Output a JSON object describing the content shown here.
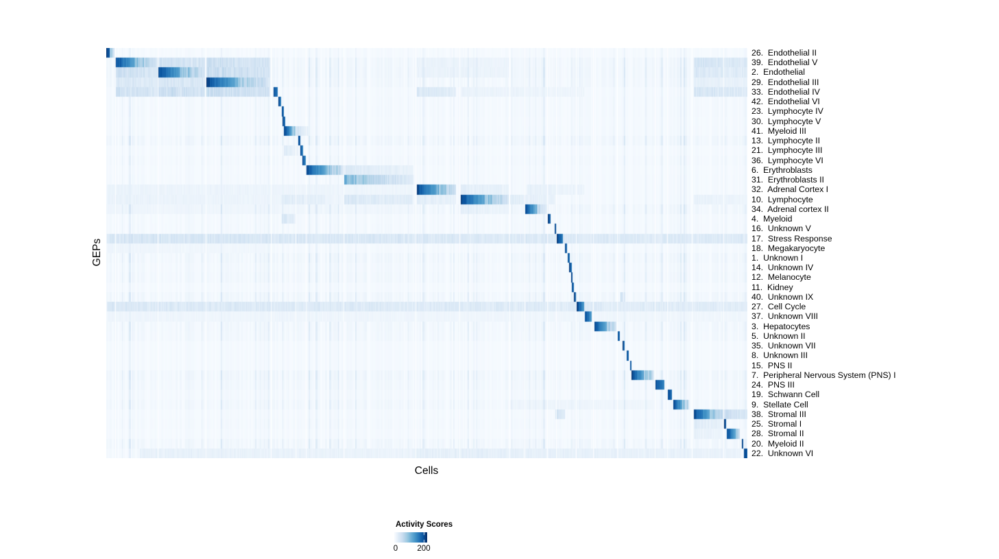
{
  "accent_color": "#08306b",
  "background_color": "#ffffff",
  "chart_data": {
    "type": "heatmap",
    "x_axis_label": "Cells",
    "y_axis_label": "GEPs",
    "legend": {
      "title": "Activity Scores",
      "tick_labels": [
        "0",
        "200"
      ],
      "tick_values": [
        0,
        200
      ],
      "value_max": 223,
      "tick_fraction": 0.896
    },
    "colormap": [
      [
        0.0,
        "#f7fbff"
      ],
      [
        0.13,
        "#deebf7"
      ],
      [
        0.26,
        "#c6dbef"
      ],
      [
        0.39,
        "#9ecae1"
      ],
      [
        0.52,
        "#6baed6"
      ],
      [
        0.65,
        "#4292c6"
      ],
      [
        0.78,
        "#2171b5"
      ],
      [
        0.9,
        "#08519c"
      ],
      [
        1.0,
        "#08306b"
      ]
    ],
    "cluster_gaps": [
      0.0134,
      0.0802,
      0.1551,
      0.2567,
      0.2957,
      0.3117,
      0.3701,
      0.4827,
      0.5513,
      0.6294,
      0.6529,
      0.6877,
      0.7011,
      0.7326,
      0.7594,
      0.7973,
      0.8556,
      0.8749,
      0.9139,
      0.9631
    ],
    "rows": [
      {
        "label": "26.  Endothelial II",
        "blocks": [
          [
            0.0,
            0.0053,
            1,
            0.9
          ],
          [
            0.0053,
            0.0128,
            0.5,
            0.28
          ]
        ]
      },
      {
        "label": "39.  Endothelial V",
        "blocks": [
          [
            0.0139,
            0.0797,
            1,
            0.22
          ],
          [
            0.0813,
            0.1545,
            0.28,
            0.22
          ],
          [
            0.1561,
            0.2561,
            0.3,
            0.23
          ],
          [
            0.4843,
            0.6278,
            0.09,
            0.07
          ],
          [
            0.9166,
            1,
            0.23,
            0.18
          ]
        ]
      },
      {
        "label": "2.  Endothelial",
        "blocks": [
          [
            0.0813,
            0.1545,
            1,
            0.24
          ],
          [
            0.0139,
            0.0797,
            0.3,
            0.23
          ],
          [
            0.1561,
            0.2561,
            0.33,
            0.25
          ],
          [
            0.4843,
            0.6278,
            0.09,
            0.07
          ],
          [
            0.9166,
            1,
            0.19,
            0.15
          ]
        ]
      },
      {
        "label": "29.  Endothelial III",
        "blocks": [
          [
            0.1561,
            0.2561,
            1,
            0.2
          ],
          [
            0.0139,
            0.0797,
            0.21,
            0.17
          ],
          [
            0.0813,
            0.1545,
            0.24,
            0.19
          ],
          [
            0.9166,
            1,
            0.12,
            0.09
          ]
        ]
      },
      {
        "label": "33.  Endothelial IV",
        "blocks": [
          [
            0.2609,
            0.2674,
            1,
            0.8
          ],
          [
            0.0139,
            0.0797,
            0.27,
            0.22
          ],
          [
            0.0813,
            0.1545,
            0.3,
            0.25
          ],
          [
            0.1561,
            0.2561,
            0.33,
            0.25
          ],
          [
            0.4843,
            0.5455,
            0.19,
            0.14
          ],
          [
            0.5529,
            0.745,
            0.09,
            0.06
          ],
          [
            0.9166,
            1,
            0.24,
            0.17
          ]
        ]
      },
      {
        "label": "42.  Endothelial VI",
        "blocks": [
          [
            0.2684,
            0.2727,
            1,
            0.8
          ]
        ]
      },
      {
        "label": "23.  Lymphocyte IV",
        "blocks": [
          [
            0.2738,
            0.2775,
            1,
            0.75
          ]
        ]
      },
      {
        "label": "30.  Lymphocyte V",
        "blocks": [
          [
            0.2754,
            0.2791,
            1,
            0.8
          ]
        ]
      },
      {
        "label": "41.  Myeloid III",
        "blocks": [
          [
            0.2765,
            0.2952,
            1,
            0.42
          ],
          [
            0.2952,
            0.3155,
            0.28,
            0.1
          ]
        ]
      },
      {
        "label": "13.  Lymphocyte II",
        "blocks": [
          [
            0.2995,
            0.3027,
            1,
            0.85
          ]
        ]
      },
      {
        "label": "21.  Lymphocyte III",
        "blocks": [
          [
            0.3027,
            0.307,
            1,
            0.7
          ],
          [
            0.2775,
            0.2995,
            0.16,
            0.1
          ]
        ]
      },
      {
        "label": "36.  Lymphocyte VI",
        "blocks": [
          [
            0.3059,
            0.3112,
            1,
            0.72
          ]
        ]
      },
      {
        "label": "6.  Erythroblasts",
        "blocks": [
          [
            0.3112,
            0.3658,
            1,
            0.32
          ],
          [
            0.3658,
            0.4791,
            0.2,
            0.09
          ]
        ]
      },
      {
        "label": "31.  Erythroblasts II",
        "blocks": [
          [
            0.3711,
            0.4791,
            0.62,
            0.14
          ]
        ]
      },
      {
        "label": "32.  Adrenal Cortex I",
        "blocks": [
          [
            0.4843,
            0.5455,
            1,
            0.28
          ],
          [
            0.0011,
            0.479,
            0.08,
            0.06
          ],
          [
            0.5529,
            0.6278,
            0.14,
            0.09
          ],
          [
            0.6556,
            0.745,
            0.11,
            0.07
          ]
        ]
      },
      {
        "label": "10.  Lymphocyte",
        "blocks": [
          [
            0.5529,
            0.6278,
            1,
            0.24
          ],
          [
            0.0011,
            0.37,
            0.09,
            0.06
          ],
          [
            0.2738,
            0.3422,
            0.17,
            0.11
          ],
          [
            0.3711,
            0.4791,
            0.2,
            0.13
          ],
          [
            0.4843,
            0.5455,
            0.15,
            0.1
          ],
          [
            0.6299,
            0.7,
            0.14,
            0.09
          ],
          [
            0.9166,
            1,
            0.1,
            0.06
          ]
        ]
      },
      {
        "label": "34.  Adrenal cortex II",
        "blocks": [
          [
            0.6535,
            0.6727,
            1,
            0.5
          ],
          [
            0.6727,
            0.6898,
            0.38,
            0.12
          ],
          [
            0.5529,
            0.6278,
            0.11,
            0.07
          ],
          [
            0.0011,
            0.479,
            0.06,
            0.04
          ]
        ]
      },
      {
        "label": "4.  Myeloid",
        "blocks": [
          [
            0.6888,
            0.6931,
            1,
            0.8
          ],
          [
            0.2738,
            0.2952,
            0.22,
            0.13
          ]
        ]
      },
      {
        "label": "16.  Unknown V",
        "blocks": [
          [
            0.6995,
            0.7027,
            1,
            0.75
          ]
        ]
      },
      {
        "label": "17.  Stress Response",
        "blocks": [
          [
            0.7027,
            0.7123,
            1,
            0.78
          ],
          [
            0.0011,
            0.9995,
            0.22,
            0.17
          ]
        ]
      },
      {
        "label": "18.  Megakaryocyte",
        "blocks": [
          [
            0.7155,
            0.7187,
            1,
            0.8
          ],
          [
            0.0011,
            0.2561,
            0.06,
            0.04
          ]
        ]
      },
      {
        "label": "1.  Unknown I",
        "blocks": [
          [
            0.7198,
            0.7233,
            1,
            0.75
          ]
        ]
      },
      {
        "label": "14.  Unknown IV",
        "blocks": [
          [
            0.7219,
            0.7257,
            1,
            0.8
          ]
        ]
      },
      {
        "label": "12.  Melanocyte",
        "blocks": [
          [
            0.7246,
            0.7278,
            1,
            0.85
          ]
        ]
      },
      {
        "label": "11.  Kidney",
        "blocks": [
          [
            0.7267,
            0.7299,
            1,
            0.8
          ]
        ]
      },
      {
        "label": "40.  Unknown IX",
        "blocks": [
          [
            0.7289,
            0.7332,
            1,
            0.72
          ],
          [
            0.8021,
            0.8064,
            0.28,
            0.22
          ]
        ]
      },
      {
        "label": "27.  Cell Cycle",
        "blocks": [
          [
            0.7337,
            0.7455,
            1,
            0.68
          ],
          [
            0.0011,
            0.9995,
            0.19,
            0.15
          ]
        ]
      },
      {
        "label": "37.  Unknown VIII",
        "blocks": [
          [
            0.7465,
            0.7572,
            1,
            0.62
          ],
          [
            0.0011,
            0.9995,
            0.06,
            0.05
          ]
        ]
      },
      {
        "label": "3.  Hepatocytes",
        "blocks": [
          [
            0.7615,
            0.7957,
            1,
            0.28
          ]
        ]
      },
      {
        "label": "5.  Unknown II",
        "blocks": [
          [
            0.7978,
            0.8011,
            1,
            0.8
          ]
        ]
      },
      {
        "label": "35.  Unknown VII",
        "blocks": [
          [
            0.8053,
            0.8086,
            1,
            0.75
          ]
        ]
      },
      {
        "label": "8.  Unknown III",
        "blocks": [
          [
            0.8117,
            0.815,
            1,
            0.8
          ]
        ]
      },
      {
        "label": "15.  PNS II",
        "blocks": [
          [
            0.8171,
            0.8193,
            1,
            0.8
          ]
        ]
      },
      {
        "label": "7.  Peripheral Nervous System (PNS) I",
        "blocks": [
          [
            0.8193,
            0.8535,
            1,
            0.32
          ]
        ]
      },
      {
        "label": "24.  PNS III",
        "blocks": [
          [
            0.8567,
            0.8706,
            1,
            0.7
          ]
        ]
      },
      {
        "label": "19.  Schwann Cell",
        "blocks": [
          [
            0.876,
            0.8824,
            1,
            0.8
          ]
        ]
      },
      {
        "label": "9.  Stellate Cell",
        "blocks": [
          [
            0.8845,
            0.9091,
            1,
            0.32
          ],
          [
            0.6299,
            0.8535,
            0.07,
            0.05
          ]
        ]
      },
      {
        "label": "38.  Stromal III",
        "blocks": [
          [
            0.9166,
            0.9615,
            1,
            0.32
          ],
          [
            0.9615,
            0.9995,
            0.3,
            0.22
          ],
          [
            0.7,
            0.716,
            0.24,
            0.18
          ]
        ]
      },
      {
        "label": "25.  Stromal I",
        "blocks": [
          [
            0.9637,
            0.9668,
            1,
            0.85
          ],
          [
            0.9166,
            0.9615,
            0.17,
            0.11
          ]
        ]
      },
      {
        "label": "28.  Stromal II",
        "blocks": [
          [
            0.968,
            0.988,
            1,
            0.38
          ],
          [
            0.9166,
            0.9615,
            0.11,
            0.07
          ]
        ]
      },
      {
        "label": "20.  Myeloid II",
        "blocks": [
          [
            0.9914,
            0.9936,
            1,
            0.85
          ]
        ]
      },
      {
        "label": "22.  Unknown VI",
        "blocks": [
          [
            0.9947,
            0.9995,
            1,
            0.9
          ],
          [
            0.0524,
            0.479,
            0.11,
            0.08
          ],
          [
            0.479,
            0.99,
            0.13,
            0.09
          ]
        ]
      }
    ]
  }
}
